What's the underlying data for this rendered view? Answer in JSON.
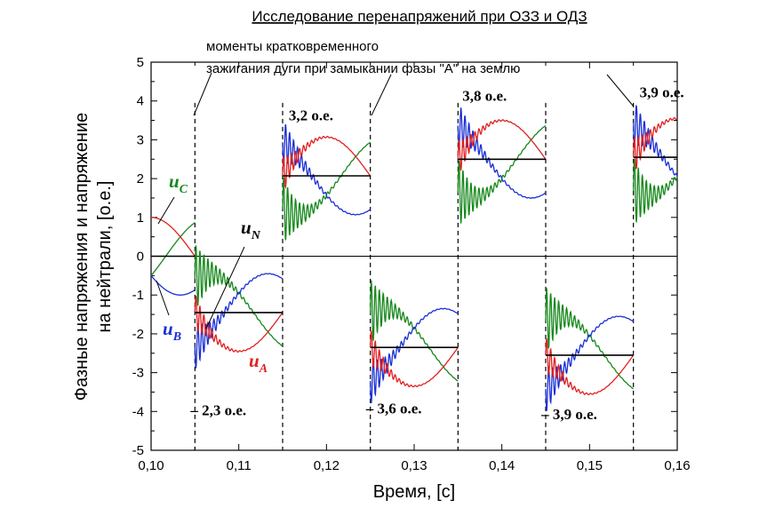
{
  "chart_data": {
    "type": "line",
    "title": "Исследование перенапряжений при ОЗЗ и ОДЗ",
    "xlabel": "Время, [c]",
    "ylabel_lines": [
      "Фазные напряжения и напряжение",
      "на нейтрали, [о.е.]"
    ],
    "xlim": [
      0.1,
      0.16
    ],
    "ylim": [
      -5,
      5
    ],
    "x_ticks": [
      "0,10",
      "0,11",
      "0,12",
      "0,13",
      "0,14",
      "0,15",
      "0,16"
    ],
    "y_ticks": [
      "5",
      "4",
      "3",
      "2",
      "1",
      "0",
      "-1",
      "-2",
      "-3",
      "-4",
      "-5"
    ],
    "grid": false,
    "arc_ignition_times": [
      0.105,
      0.115,
      0.125,
      0.135,
      0.145,
      0.155
    ],
    "note_lines": [
      "моменты кратковременного",
      "зажигания дуги при замыкании фазы \"А\" на землю"
    ],
    "neutral_voltage_levels": [
      {
        "x": [
          0.105,
          0.115
        ],
        "y": -1.45
      },
      {
        "x": [
          0.115,
          0.125
        ],
        "y": 2.07
      },
      {
        "x": [
          0.125,
          0.135
        ],
        "y": -2.35
      },
      {
        "x": [
          0.135,
          0.145
        ],
        "y": 2.5
      },
      {
        "x": [
          0.145,
          0.155
        ],
        "y": -2.55
      },
      {
        "x": [
          0.155,
          0.16
        ],
        "y": 2.55
      }
    ],
    "series": [
      {
        "name_main": "u",
        "name_sub": "A",
        "color": "#e02020"
      },
      {
        "name_main": "u",
        "name_sub": "B",
        "color": "#1a2fd6"
      },
      {
        "name_main": "u",
        "name_sub": "C",
        "color": "#16881c"
      },
      {
        "name_main": "u",
        "name_sub": "N",
        "color": "#000000"
      }
    ],
    "annotations": [
      {
        "text": "3,2 о.е.",
        "x": 0.1157,
        "y": 3.5
      },
      {
        "text": "3,8 о.е.",
        "x": 0.1355,
        "y": 4.0
      },
      {
        "text": "3,9 о.е.",
        "x": 0.1557,
        "y": 4.1
      },
      {
        "text": "– 2,3 о.е.",
        "x": 0.1045,
        "y": -4.1
      },
      {
        "text": "– 3,6 о.е.",
        "x": 0.1245,
        "y": -4.05
      },
      {
        "text": "– 3,9 о.е.",
        "x": 0.1445,
        "y": -4.2
      }
    ]
  }
}
